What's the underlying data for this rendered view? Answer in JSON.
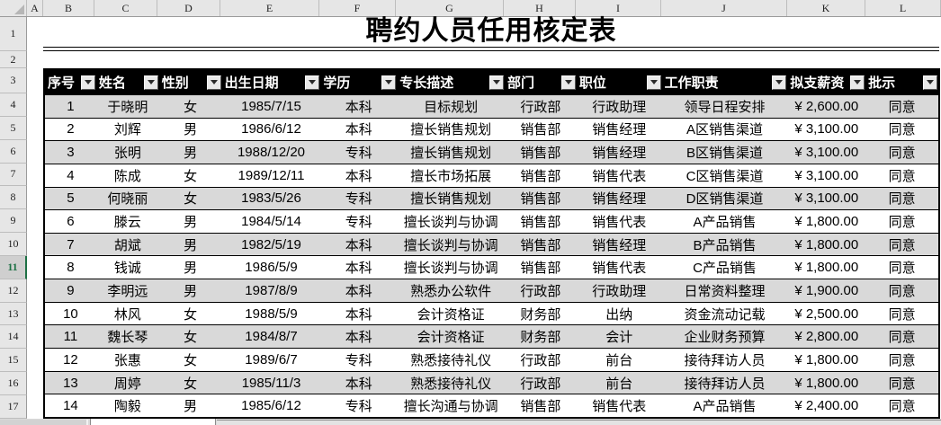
{
  "sheet": {
    "column_headers": [
      "A",
      "B",
      "C",
      "D",
      "E",
      "F",
      "G",
      "H",
      "I",
      "J",
      "K",
      "L"
    ],
    "row_headers": [
      "1",
      "2",
      "3",
      "4",
      "5",
      "6",
      "7",
      "8",
      "9",
      "10",
      "11",
      "12",
      "13",
      "14",
      "15",
      "16",
      "17"
    ],
    "active_row": "11"
  },
  "title": "聘约人员任用核定表",
  "table": {
    "columns": [
      "序号",
      "姓名",
      "性别",
      "出生日期",
      "学历",
      "专长描述",
      "部门",
      "职位",
      "工作职责",
      "拟支薪资",
      "批示"
    ],
    "rows": [
      [
        "1",
        "于晓明",
        "女",
        "1985/7/15",
        "本科",
        "目标规划",
        "行政部",
        "行政助理",
        "领导日程安排",
        "¥ 2,600.00",
        "同意"
      ],
      [
        "2",
        "刘辉",
        "男",
        "1986/6/12",
        "本科",
        "擅长销售规划",
        "销售部",
        "销售经理",
        "A区销售渠道",
        "¥ 3,100.00",
        "同意"
      ],
      [
        "3",
        "张明",
        "男",
        "1988/12/20",
        "专科",
        "擅长销售规划",
        "销售部",
        "销售经理",
        "B区销售渠道",
        "¥ 3,100.00",
        "同意"
      ],
      [
        "4",
        "陈成",
        "女",
        "1989/12/11",
        "本科",
        "擅长市场拓展",
        "销售部",
        "销售代表",
        "C区销售渠道",
        "¥ 3,100.00",
        "同意"
      ],
      [
        "5",
        "何晓丽",
        "女",
        "1983/5/26",
        "专科",
        "擅长销售规划",
        "销售部",
        "销售经理",
        "D区销售渠道",
        "¥ 3,100.00",
        "同意"
      ],
      [
        "6",
        "滕云",
        "男",
        "1984/5/14",
        "专科",
        "擅长谈判与协调",
        "销售部",
        "销售代表",
        "A产品销售",
        "¥ 1,800.00",
        "同意"
      ],
      [
        "7",
        "胡斌",
        "男",
        "1982/5/19",
        "本科",
        "擅长谈判与协调",
        "销售部",
        "销售经理",
        "B产品销售",
        "¥ 1,800.00",
        "同意"
      ],
      [
        "8",
        "钱诚",
        "男",
        "1986/5/9",
        "本科",
        "擅长谈判与协调",
        "销售部",
        "销售代表",
        "C产品销售",
        "¥ 1,800.00",
        "同意"
      ],
      [
        "9",
        "李明远",
        "男",
        "1987/8/9",
        "本科",
        "熟悉办公软件",
        "行政部",
        "行政助理",
        "日常资料整理",
        "¥ 1,900.00",
        "同意"
      ],
      [
        "10",
        "林风",
        "女",
        "1988/5/9",
        "本科",
        "会计资格证",
        "财务部",
        "出纳",
        "资金流动记载",
        "¥ 2,500.00",
        "同意"
      ],
      [
        "11",
        "魏长琴",
        "女",
        "1984/8/7",
        "本科",
        "会计资格证",
        "财务部",
        "会计",
        "企业财务预算",
        "¥ 2,800.00",
        "同意"
      ],
      [
        "12",
        "张惠",
        "女",
        "1989/6/7",
        "专科",
        "熟悉接待礼仪",
        "行政部",
        "前台",
        "接待拜访人员",
        "¥ 1,800.00",
        "同意"
      ],
      [
        "13",
        "周婷",
        "女",
        "1985/11/3",
        "本科",
        "熟悉接待礼仪",
        "行政部",
        "前台",
        "接待拜访人员",
        "¥ 1,800.00",
        "同意"
      ],
      [
        "14",
        "陶毅",
        "男",
        "1985/6/12",
        "专科",
        "擅长沟通与协调",
        "销售部",
        "销售代表",
        "A产品销售",
        "¥ 2,400.00",
        "同意"
      ]
    ]
  },
  "icons": {
    "filter_dropdown": "down-triangle",
    "select_all": "corner-triangle"
  },
  "colors": {
    "table_header_bg": "#000000",
    "table_header_text": "#FFFFFF",
    "stripe_gray": "#D9D9D9",
    "active_row_green": "#1E7145",
    "chrome_gray": "#E6E6E6"
  }
}
